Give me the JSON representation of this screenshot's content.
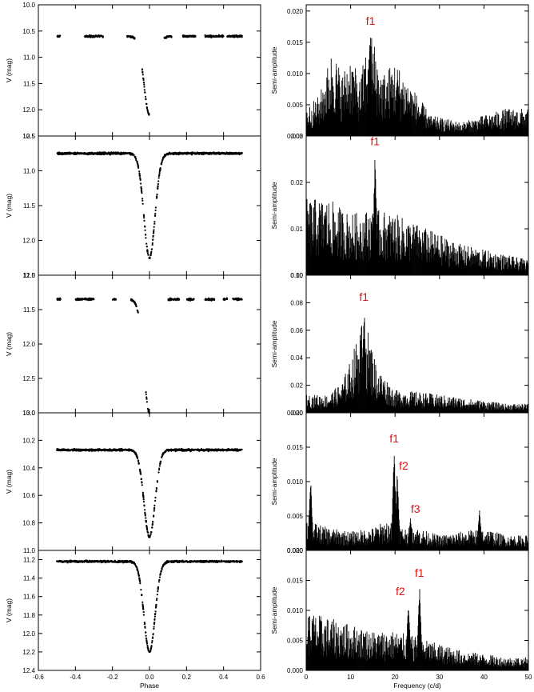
{
  "chart_data": [
    {
      "type": "scatter",
      "panel": "left-1",
      "ylabel": "V (mag)",
      "xlim": [
        -0.6,
        0.6
      ],
      "ylim": [
        12.5,
        10.0
      ],
      "yinverted": true,
      "yticks": [
        "10.0",
        "10.5",
        "11.0",
        "11.5",
        "12.0",
        "12.5"
      ],
      "xticks": [],
      "xlabel": "",
      "baseline": 10.6,
      "minimum": 12.1,
      "coverage": [
        [
          -0.5,
          -0.48
        ],
        [
          -0.35,
          -0.25
        ],
        [
          -0.12,
          -0.08
        ],
        [
          -0.04,
          0.0
        ],
        [
          0.08,
          0.12
        ],
        [
          0.18,
          0.25
        ],
        [
          0.3,
          0.4
        ],
        [
          0.42,
          0.5
        ]
      ]
    },
    {
      "type": "scatter",
      "panel": "left-2",
      "ylabel": "V (mag)",
      "xlim": [
        -0.6,
        0.6
      ],
      "ylim": [
        12.5,
        10.5
      ],
      "yinverted": true,
      "yticks": [
        "10.5",
        "11.0",
        "11.5",
        "12.0",
        "12.5"
      ],
      "xticks": [],
      "xlabel": "",
      "baseline": 10.75,
      "minimum": 12.25,
      "coverage": [
        [
          -0.5,
          0.5
        ]
      ]
    },
    {
      "type": "scatter",
      "panel": "left-3",
      "ylabel": "V (mag)",
      "xlim": [
        -0.6,
        0.6
      ],
      "ylim": [
        13.0,
        11.0
      ],
      "yinverted": true,
      "yticks": [
        "11.0",
        "11.5",
        "12.0",
        "12.5",
        "13.0"
      ],
      "xticks": [],
      "xlabel": "",
      "baseline": 11.35,
      "minimum": 13.0,
      "coverage": [
        [
          -0.5,
          -0.48
        ],
        [
          -0.4,
          -0.3
        ],
        [
          -0.2,
          -0.18
        ],
        [
          -0.1,
          -0.06
        ],
        [
          -0.02,
          0.0
        ],
        [
          0.1,
          0.16
        ],
        [
          0.2,
          0.24
        ],
        [
          0.3,
          0.35
        ],
        [
          0.4,
          0.42
        ],
        [
          0.45,
          0.5
        ]
      ]
    },
    {
      "type": "scatter",
      "panel": "left-4",
      "ylabel": "V (mag)",
      "xlim": [
        -0.6,
        0.6
      ],
      "ylim": [
        11.0,
        10.0
      ],
      "yinverted": true,
      "yticks": [
        "10.0",
        "10.2",
        "10.4",
        "10.6",
        "10.8",
        "11.0"
      ],
      "xticks": [],
      "xlabel": "",
      "baseline": 10.27,
      "minimum": 10.9,
      "coverage": [
        [
          -0.5,
          0.5
        ]
      ]
    },
    {
      "type": "scatter",
      "panel": "left-5",
      "ylabel": "V (mag)",
      "xlim": [
        -0.6,
        0.6
      ],
      "ylim": [
        12.4,
        11.1
      ],
      "yinverted": true,
      "yticks": [
        "11.2",
        "11.4",
        "11.6",
        "11.8",
        "12.0",
        "12.2",
        "12.4"
      ],
      "xticks": [
        "-0.6",
        "-0.4",
        "-0.2",
        "0.0",
        "0.2",
        "0.4",
        "0.6"
      ],
      "xlabel": "Phase",
      "baseline": 11.22,
      "minimum": 12.2,
      "coverage": [
        [
          -0.5,
          0.5
        ]
      ]
    },
    {
      "type": "bar",
      "panel": "right-1",
      "ylabel": "Semi-amplitude",
      "xlim": [
        0,
        50
      ],
      "ylim": [
        0,
        0.021
      ],
      "yticks": [
        "0.000",
        "0.005",
        "0.010",
        "0.015",
        "0.020"
      ],
      "xticks": [],
      "xlabel": "",
      "peaks": [
        {
          "label": "f1",
          "x": 14.5,
          "y": 0.017
        }
      ],
      "envelope": [
        [
          0,
          0.004
        ],
        [
          3,
          0.006
        ],
        [
          6,
          0.013
        ],
        [
          8,
          0.009
        ],
        [
          10,
          0.012
        ],
        [
          12,
          0.008
        ],
        [
          14.5,
          0.016
        ],
        [
          17,
          0.009
        ],
        [
          20,
          0.011
        ],
        [
          23,
          0.008
        ],
        [
          25,
          0.006
        ],
        [
          28,
          0.003
        ],
        [
          35,
          0.002
        ],
        [
          40,
          0.003
        ],
        [
          45,
          0.004
        ],
        [
          50,
          0.004
        ]
      ]
    },
    {
      "type": "bar",
      "panel": "right-2",
      "ylabel": "Semi-amplitude",
      "xlim": [
        0,
        50
      ],
      "ylim": [
        0,
        0.03
      ],
      "yticks": [
        "0.00",
        "0.01",
        "0.02",
        "0.03"
      ],
      "xticks": [],
      "xlabel": "",
      "peaks": [
        {
          "label": "f1",
          "x": 15.5,
          "y": 0.027
        }
      ],
      "envelope": [
        [
          0,
          0.015
        ],
        [
          5,
          0.015
        ],
        [
          10,
          0.012
        ],
        [
          15,
          0.013
        ],
        [
          20,
          0.012
        ],
        [
          25,
          0.01
        ],
        [
          30,
          0.008
        ],
        [
          35,
          0.006
        ],
        [
          40,
          0.005
        ],
        [
          45,
          0.004
        ],
        [
          50,
          0.003
        ]
      ]
    },
    {
      "type": "bar",
      "panel": "right-3",
      "ylabel": "Semi-amplitude",
      "xlim": [
        0,
        50
      ],
      "ylim": [
        0,
        0.1
      ],
      "yticks": [
        "0.00",
        "0.02",
        "0.04",
        "0.06",
        "0.08",
        "0.10"
      ],
      "xticks": [],
      "xlabel": "",
      "peaks": [
        {
          "label": "f1",
          "x": 13,
          "y": 0.078
        }
      ],
      "envelope": [
        [
          0,
          0.012
        ],
        [
          5,
          0.012
        ],
        [
          8,
          0.02
        ],
        [
          10,
          0.035
        ],
        [
          13,
          0.065
        ],
        [
          16,
          0.03
        ],
        [
          20,
          0.015
        ],
        [
          25,
          0.014
        ],
        [
          30,
          0.012
        ],
        [
          35,
          0.01
        ],
        [
          40,
          0.008
        ],
        [
          45,
          0.006
        ],
        [
          50,
          0.006
        ]
      ]
    },
    {
      "type": "bar",
      "panel": "right-4",
      "ylabel": "Semi-amplitude",
      "xlim": [
        0,
        50
      ],
      "ylim": [
        0,
        0.02
      ],
      "yticks": [
        "0.000",
        "0.005",
        "0.010",
        "0.015",
        "0.020"
      ],
      "xticks": [],
      "xlabel": "",
      "peaks": [
        {
          "label": "f1",
          "x": 19.8,
          "y": 0.015
        },
        {
          "label": "f2",
          "x": 20.5,
          "y": 0.012
        },
        {
          "label": "f3",
          "x": 23.5,
          "y": 0.005
        }
      ],
      "extra_peaks": [
        {
          "x": 1,
          "y": 0.011
        },
        {
          "x": 39,
          "y": 0.006
        }
      ],
      "envelope": [
        [
          0,
          0.004
        ],
        [
          5,
          0.003
        ],
        [
          10,
          0.0025
        ],
        [
          15,
          0.003
        ],
        [
          18,
          0.004
        ],
        [
          22,
          0.003
        ],
        [
          25,
          0.003
        ],
        [
          30,
          0.002
        ],
        [
          35,
          0.0025
        ],
        [
          40,
          0.003
        ],
        [
          45,
          0.002
        ],
        [
          50,
          0.002
        ]
      ]
    },
    {
      "type": "bar",
      "panel": "right-5",
      "ylabel": "Semi-amplitude",
      "xlim": [
        0,
        50
      ],
      "ylim": [
        0,
        0.02
      ],
      "yticks": [
        "0.000",
        "0.005",
        "0.010",
        "0.015",
        "0.020"
      ],
      "xticks": [
        "0",
        "10",
        "20",
        "30",
        "40",
        "50"
      ],
      "xlabel": "Frequency (c/d)",
      "peaks": [
        {
          "label": "f1",
          "x": 25.5,
          "y": 0.0148
        },
        {
          "label": "f2",
          "x": 23,
          "y": 0.012
        }
      ],
      "envelope": [
        [
          0,
          0.009
        ],
        [
          5,
          0.008
        ],
        [
          10,
          0.007
        ],
        [
          15,
          0.006
        ],
        [
          20,
          0.006
        ],
        [
          25,
          0.005
        ],
        [
          30,
          0.004
        ],
        [
          35,
          0.003
        ],
        [
          40,
          0.0025
        ],
        [
          45,
          0.002
        ],
        [
          50,
          0.002
        ]
      ]
    }
  ],
  "colors": {
    "ink": "#000000",
    "peak_label": "#dd1111",
    "background": "#ffffff"
  }
}
